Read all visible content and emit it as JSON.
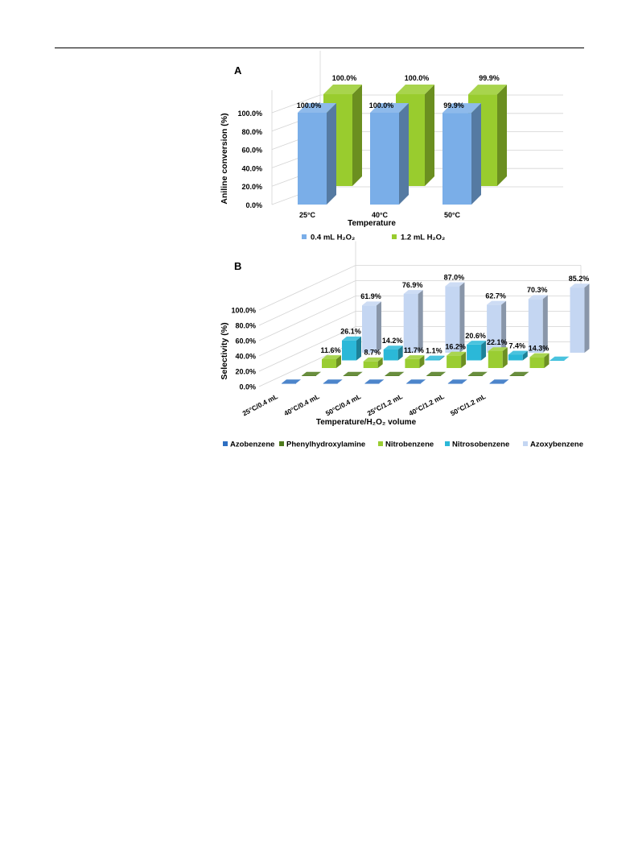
{
  "chart_data": [
    {
      "panel_label": "A",
      "type": "bar",
      "style": "3d-clustered-column",
      "categories": [
        "25°C",
        "40°C",
        "50°C"
      ],
      "series": [
        {
          "name": "0.4 mL H₂O₂",
          "values": [
            100.0,
            100.0,
            99.9
          ],
          "labels": [
            "100.0%",
            "100.0%",
            "99.9%"
          ],
          "color": "#7aaee8"
        },
        {
          "name": "1.2 mL H₂O₂",
          "values": [
            100.0,
            100.0,
            99.9
          ],
          "labels": [
            "100.0%",
            "100.0%",
            "99.9%"
          ],
          "color": "#99cc2e"
        }
      ],
      "ylabel": "Aniline conversion (%)",
      "xlabel": "Temperature",
      "y_ticks": [
        "0.0%",
        "20.0%",
        "40.0%",
        "60.0%",
        "80.0%",
        "100.0%"
      ],
      "ylim": [
        0,
        100
      ],
      "grid": true,
      "legend_position": "bottom"
    },
    {
      "panel_label": "B",
      "type": "bar",
      "style": "3d-column",
      "categories": [
        "25°C/0.4 mL",
        "40°C/0.4 mL",
        "50°C/0.4 mL",
        "25°C/1.2 mL",
        "40°C/1.2 mL",
        "50°C/1.2 mL"
      ],
      "series": [
        {
          "name": "Azobenzene",
          "values": [
            0,
            0,
            0,
            0,
            0,
            0
          ],
          "labels": [
            "",
            "",
            "",
            "",
            "",
            ""
          ],
          "color": "#2e6fc2"
        },
        {
          "name": "Phenylhydroxylamine",
          "values": [
            0,
            0,
            0,
            0,
            0,
            0
          ],
          "labels": [
            "",
            "",
            "",
            "",
            "",
            ""
          ],
          "color": "#4e7a1c"
        },
        {
          "name": "Nitrobenzene",
          "values": [
            11.6,
            8.7,
            11.7,
            16.2,
            22.1,
            14.3
          ],
          "labels": [
            "11.6%",
            "8.7%",
            "11.7%",
            "16.2%",
            "22.1%",
            "14.3%"
          ],
          "color": "#9acd32"
        },
        {
          "name": "Nitrosobenzene",
          "values": [
            26.1,
            14.2,
            1.1,
            20.6,
            7.4,
            0
          ],
          "labels": [
            "26.1%",
            "14.2%",
            "1.1%",
            "20.6%",
            "7.4%",
            ""
          ],
          "color": "#2bb8d8"
        },
        {
          "name": "Azoxybenzene",
          "values": [
            61.9,
            76.9,
            87.0,
            62.7,
            70.3,
            85.2
          ],
          "labels": [
            "61.9%",
            "76.9%",
            "87.0%",
            "62.7%",
            "70.3%",
            "85.2%"
          ],
          "color": "#c4d6f2"
        }
      ],
      "ylabel": "Selectivity (%)",
      "xlabel": "Temperature/H₂O₂ volume",
      "y_ticks": [
        "0.0%",
        "20.0%",
        "40.0%",
        "60.0%",
        "80.0%",
        "100.0%"
      ],
      "ylim": [
        0,
        100
      ],
      "grid": true,
      "legend_position": "bottom"
    }
  ]
}
